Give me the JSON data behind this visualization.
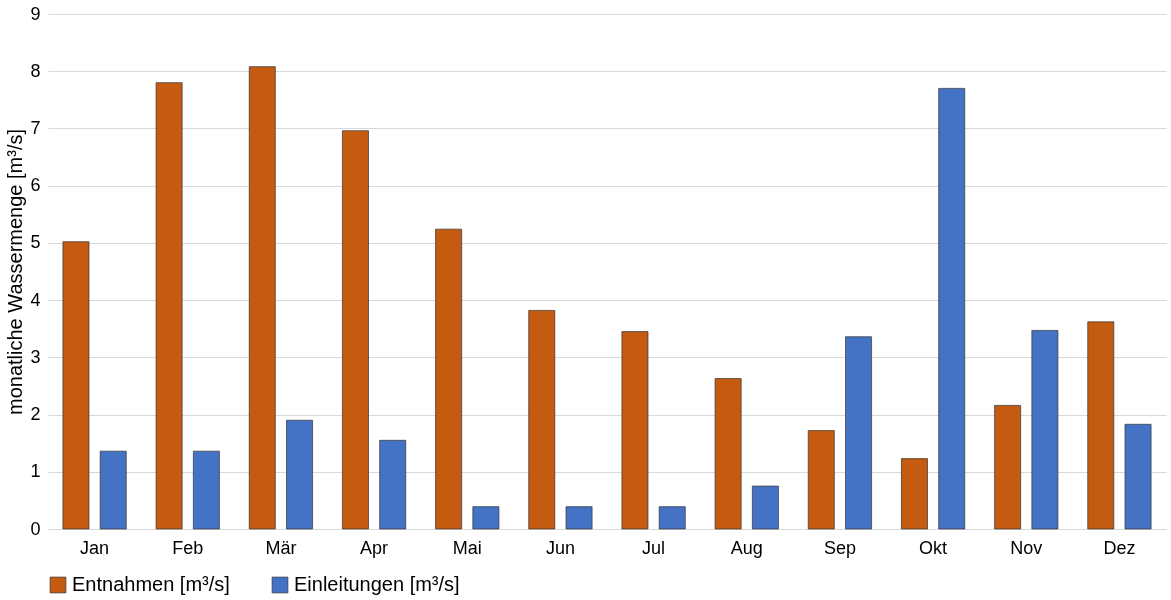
{
  "chart_data": {
    "type": "bar",
    "ylabel": "monatliche Wassermenge [m³/s]",
    "categories": [
      "Jan",
      "Feb",
      "Mär",
      "Apr",
      "Mai",
      "Jun",
      "Jul",
      "Aug",
      "Sep",
      "Okt",
      "Nov",
      "Dez"
    ],
    "series": [
      {
        "name": "Entnahmen [m³/s]",
        "color": "#c55a11",
        "values": [
          5.02,
          7.8,
          8.08,
          6.96,
          5.24,
          3.82,
          3.45,
          2.63,
          1.72,
          1.23,
          2.16,
          3.62
        ]
      },
      {
        "name": "Einleitungen [m³/s]",
        "color": "#4472c4",
        "values": [
          1.36,
          1.36,
          1.9,
          1.55,
          0.39,
          0.39,
          0.39,
          0.75,
          3.36,
          7.7,
          3.47,
          1.83
        ]
      }
    ],
    "ylim": [
      0,
      9
    ],
    "yticks": [
      0,
      1,
      2,
      3,
      4,
      5,
      6,
      7,
      8,
      9
    ],
    "grid": "y",
    "legend": "bottom"
  }
}
